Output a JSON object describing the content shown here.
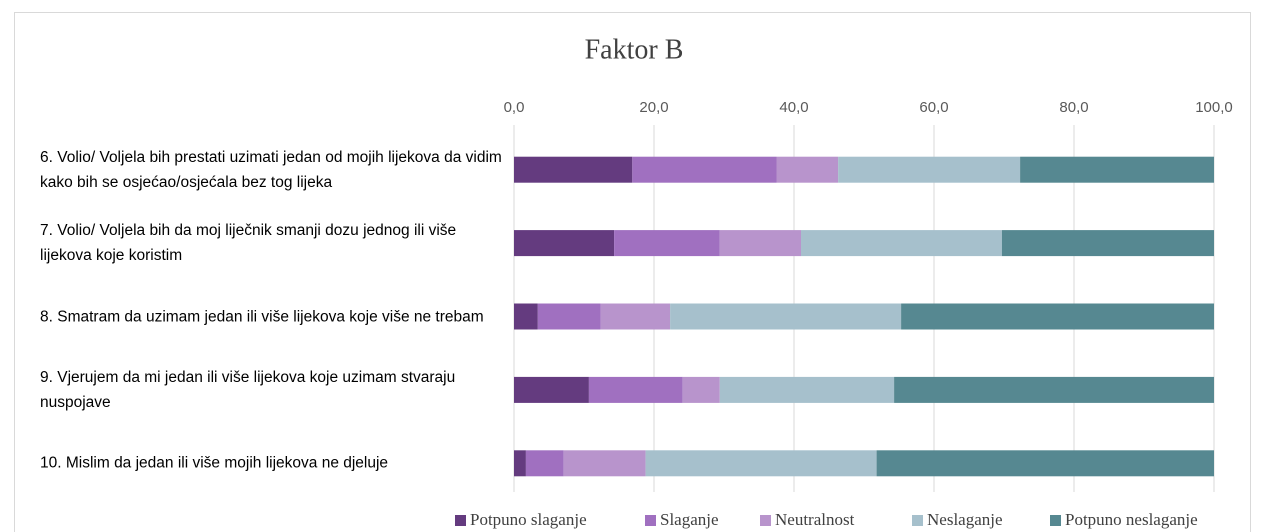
{
  "chart_data": {
    "type": "stacked-bar-horizontal",
    "title": "Faktor B",
    "categories": [
      "6. Volio/ Voljela bih prestati uzimati jedan od mojih lijekova da vidim kako bih se osjećao/osjećala bez tog lijeka",
      "7. Volio/ Voljela bih da moj liječnik smanji dozu jednog ili više lijekova koje koristim",
      "8. Smatram da uzimam jedan ili više lijekova koje više ne trebam",
      "9. Vjerujem da mi jedan ili više lijekova koje uzimam stvaraju nuspojave",
      "10. Mislim da jedan ili više mojih lijekova ne djeluje"
    ],
    "series": [
      {
        "name": "Potpuno slaganje",
        "color": "#643b7f",
        "values": [
          16.9,
          14.3,
          3.4,
          10.7,
          1.7
        ]
      },
      {
        "name": "Slaganje",
        "color": "#a070c0",
        "values": [
          20.6,
          15.1,
          9.0,
          13.4,
          5.4
        ]
      },
      {
        "name": "Neutralnost",
        "color": "#b894cc",
        "values": [
          8.8,
          11.6,
          9.9,
          5.3,
          11.7
        ]
      },
      {
        "name": "Neslaganje",
        "color": "#a6c0cc",
        "values": [
          26.0,
          28.7,
          33.0,
          24.9,
          33.0
        ]
      },
      {
        "name": "Potpuno neslaganje",
        "color": "#568891",
        "values": [
          27.7,
          30.3,
          44.7,
          45.7,
          48.2
        ]
      }
    ],
    "xlim": [
      0,
      100
    ],
    "xticks": [
      {
        "value": 0,
        "label": "0,0"
      },
      {
        "value": 20,
        "label": "20,0"
      },
      {
        "value": 40,
        "label": "40,0"
      },
      {
        "value": 60,
        "label": "60,0"
      },
      {
        "value": 80,
        "label": "80,0"
      },
      {
        "value": 100,
        "label": "100,0"
      }
    ],
    "grid": true,
    "legend": "bottom"
  }
}
